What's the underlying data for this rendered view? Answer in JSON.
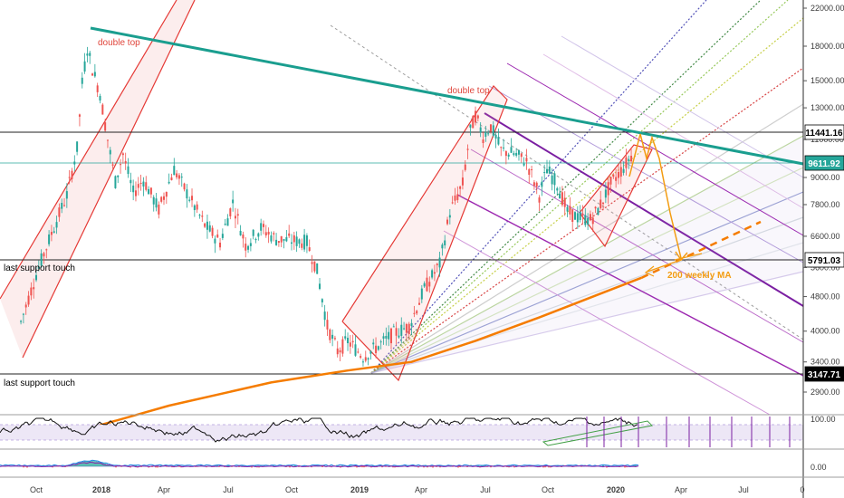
{
  "chart_data": {
    "type": "line",
    "title": "",
    "price_axis": {
      "scale": "log",
      "ticks": [
        "22000.00",
        "18000.00",
        "15000.00",
        "13000.00",
        "11000.00",
        "9000.00",
        "7800.00",
        "6600.00",
        "5600.00",
        "4800.00",
        "4000.00",
        "3400.00",
        "2900.00"
      ],
      "tick_values": [
        22000,
        18000,
        15000,
        13000,
        11000,
        9000,
        7800,
        6600,
        5600,
        4800,
        4000,
        3400,
        2900
      ]
    },
    "time_axis": {
      "labels": [
        "Oct",
        "2018",
        "Apr",
        "Jul",
        "Oct",
        "2019",
        "Apr",
        "Jul",
        "Oct",
        "2020",
        "Apr",
        "Jul",
        "0"
      ]
    },
    "level_tags": [
      {
        "value": "11441.16",
        "bg": "#ffffff",
        "fg": "#000000"
      },
      {
        "value": "9611.92",
        "bg": "#26a69a",
        "fg": "#ffffff"
      },
      {
        "value": "5791.03",
        "bg": "#ffffff",
        "fg": "#000000"
      },
      {
        "value": "3147.71",
        "bg": "#000000",
        "fg": "#ffffff"
      }
    ],
    "annotations": [
      {
        "text": "double top",
        "color": "#e0463c"
      },
      {
        "text": "double top",
        "color": "#e0463c"
      },
      {
        "text": "last support touch",
        "color": "#000000"
      },
      {
        "text": "last support touch",
        "color": "#000000"
      },
      {
        "text": "200 weekly MA",
        "color": "#f39c12"
      }
    ],
    "series": [
      {
        "name": "",
        "color": "#26a69a",
        "down_color": "#ef5350",
        "points": [
          [
            2017.72,
            4200
          ],
          [
            2017.78,
            5400
          ],
          [
            2017.84,
            6700
          ],
          [
            2017.9,
            8200
          ],
          [
            2017.94,
            10500
          ],
          [
            2017.96,
            14800
          ],
          [
            2017.98,
            17800
          ],
          [
            2018.0,
            16000
          ],
          [
            2018.03,
            14000
          ],
          [
            2018.06,
            11000
          ],
          [
            2018.09,
            8800
          ],
          [
            2018.12,
            10200
          ],
          [
            2018.16,
            8300
          ],
          [
            2018.2,
            8900
          ],
          [
            2018.26,
            7600
          ],
          [
            2018.32,
            9400
          ],
          [
            2018.38,
            8100
          ],
          [
            2018.44,
            7000
          ],
          [
            2018.5,
            6400
          ],
          [
            2018.55,
            7900
          ],
          [
            2018.6,
            6300
          ],
          [
            2018.66,
            6900
          ],
          [
            2018.72,
            6500
          ],
          [
            2018.78,
            6450
          ],
          [
            2018.84,
            6400
          ],
          [
            2018.88,
            5500
          ],
          [
            2018.92,
            4100
          ],
          [
            2018.96,
            3600
          ],
          [
            2019.0,
            3800
          ],
          [
            2019.06,
            3500
          ],
          [
            2019.12,
            3700
          ],
          [
            2019.18,
            3950
          ],
          [
            2019.24,
            4100
          ],
          [
            2019.3,
            5000
          ],
          [
            2019.36,
            5700
          ],
          [
            2019.4,
            7500
          ],
          [
            2019.45,
            8700
          ],
          [
            2019.48,
            11500
          ],
          [
            2019.5,
            12500
          ],
          [
            2019.53,
            11200
          ],
          [
            2019.56,
            11800
          ],
          [
            2019.6,
            10400
          ],
          [
            2019.65,
            10200
          ],
          [
            2019.7,
            9800
          ],
          [
            2019.75,
            8200
          ],
          [
            2019.78,
            9400
          ],
          [
            2019.82,
            8700
          ],
          [
            2019.86,
            7500
          ],
          [
            2019.9,
            7300
          ],
          [
            2019.95,
            7200
          ],
          [
            2019.98,
            7600
          ],
          [
            2020.03,
            8700
          ],
          [
            2020.08,
            9500
          ],
          [
            2020.12,
            10300
          ]
        ]
      },
      {
        "name": "",
        "color": "#f57c00",
        "points": [
          [
            2017.88,
            2300
          ],
          [
            2018.3,
            2700
          ],
          [
            2018.7,
            3050
          ],
          [
            2019.0,
            3250
          ],
          [
            2019.25,
            3400
          ],
          [
            2019.5,
            3800
          ],
          [
            2019.75,
            4300
          ],
          [
            2020.0,
            4900
          ],
          [
            2020.15,
            5300
          ]
        ]
      }
    ],
    "indicators": {
      "rsi": {
        "levels": [
          "100.00"
        ]
      },
      "macd": {
        "levels": [
          "0.00"
        ]
      }
    },
    "grid": false,
    "legend": "none"
  }
}
